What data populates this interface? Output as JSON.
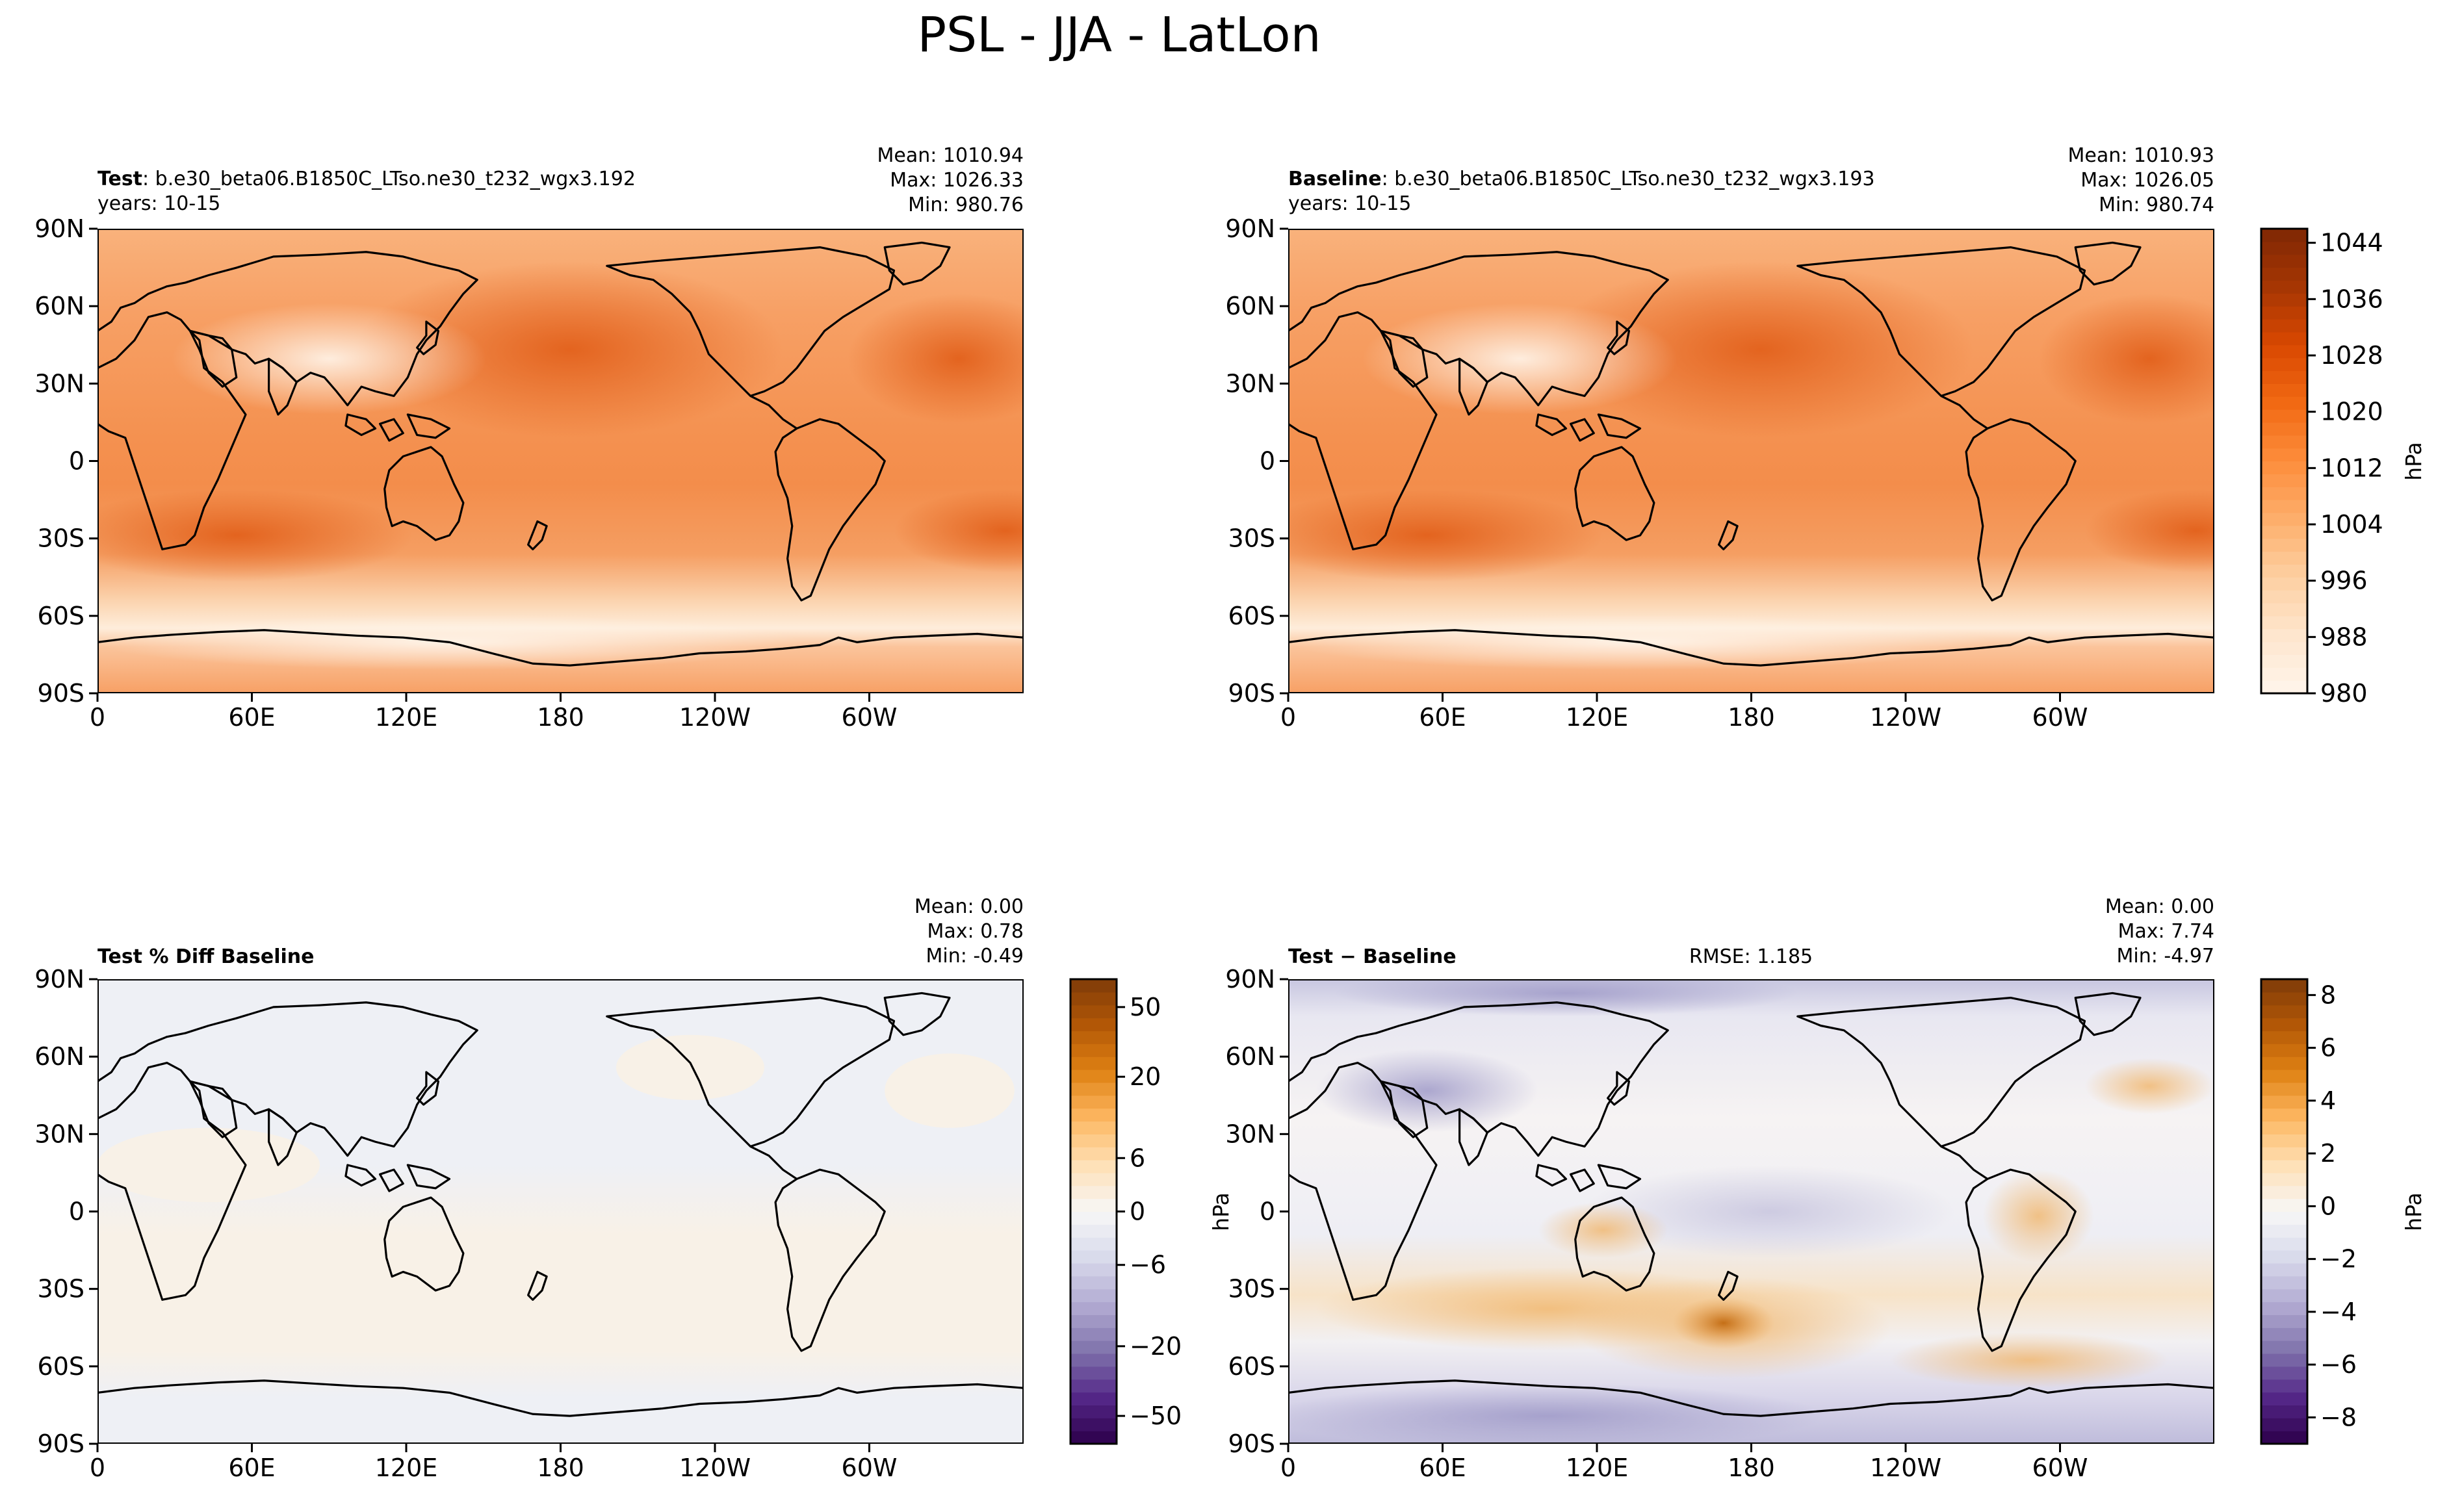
{
  "figure": {
    "title": "PSL - JJA - LatLon"
  },
  "chart_data": [
    {
      "type": "heatmap",
      "name": "test",
      "label_bold": "Test",
      "label_rest": ": b.e30_beta06.B1850C_LTso.ne30_t232_wgx3.192",
      "years": "years: 10-15",
      "stats": [
        "Mean: 1010.94",
        "Max: 1026.33",
        "Min: 980.76"
      ],
      "field": "psl",
      "colormap": "oranges",
      "vmin": 980,
      "vmax": 1046,
      "x_ticks": [
        "0",
        "60E",
        "120E",
        "180",
        "120W",
        "60W"
      ],
      "y_ticks": [
        "90N",
        "60N",
        "30N",
        "0",
        "30S",
        "60S",
        "90S"
      ],
      "xlim": [
        0,
        360
      ],
      "ylim": [
        -90,
        90
      ]
    },
    {
      "type": "heatmap",
      "name": "baseline",
      "label_bold": "Baseline",
      "label_rest": ": b.e30_beta06.B1850C_LTso.ne30_t232_wgx3.193",
      "years": "years: 10-15",
      "stats": [
        "Mean: 1010.93",
        "Max: 1026.05",
        "Min: 980.74"
      ],
      "field": "psl",
      "colormap": "oranges",
      "vmin": 980,
      "vmax": 1046,
      "x_ticks": [
        "0",
        "60E",
        "120E",
        "180",
        "120W",
        "60W"
      ],
      "y_ticks": [
        "90N",
        "60N",
        "30N",
        "0",
        "30S",
        "60S",
        "90S"
      ],
      "xlim": [
        0,
        360
      ],
      "ylim": [
        -90,
        90
      ],
      "colorbar": {
        "label": "hPa",
        "ticks": [
          "1044",
          "1036",
          "1028",
          "1020",
          "1012",
          "1004",
          "996",
          "988",
          "980"
        ],
        "tick_values": [
          1044,
          1036,
          1028,
          1020,
          1012,
          1004,
          996,
          988,
          980
        ],
        "min": 980,
        "max": 1046
      }
    },
    {
      "type": "heatmap",
      "name": "pct-diff",
      "label_bold": "Test % Diff Baseline",
      "stats": [
        "Mean:  0.00",
        "Max:  0.78",
        "Min: -0.49"
      ],
      "field": "pct",
      "colormap": "purple-orange",
      "x_ticks": [
        "0",
        "60E",
        "120E",
        "180",
        "120W",
        "60W"
      ],
      "y_ticks": [
        "90N",
        "60N",
        "30N",
        "0",
        "30S",
        "60S",
        "90S"
      ],
      "xlim": [
        0,
        360
      ],
      "ylim": [
        -90,
        90
      ],
      "colorbar": {
        "label": "hPa",
        "ticks": [
          "50",
          "20",
          "6",
          "0",
          "−6",
          "−20",
          "−50"
        ],
        "tick_fractions": [
          0.94,
          0.79,
          0.615,
          0.5,
          0.385,
          0.21,
          0.06
        ]
      }
    },
    {
      "type": "heatmap",
      "name": "difference",
      "label_bold": "Test − Baseline",
      "rmse": "RMSE: 1.185",
      "stats": [
        "Mean:  0.00",
        "Max:  7.74",
        "Min: -4.97"
      ],
      "field": "diff",
      "colormap": "purple-orange",
      "vmin": -9,
      "vmax": 8.6,
      "x_ticks": [
        "0",
        "60E",
        "120E",
        "180",
        "120W",
        "60W"
      ],
      "y_ticks": [
        "90N",
        "60N",
        "30N",
        "0",
        "30S",
        "60S",
        "90S"
      ],
      "xlim": [
        0,
        360
      ],
      "ylim": [
        -90,
        90
      ],
      "colorbar": {
        "label": "hPa",
        "ticks": [
          "8",
          "6",
          "4",
          "2",
          "0",
          "−2",
          "−4",
          "−6",
          "−8"
        ],
        "tick_values": [
          8,
          6,
          4,
          2,
          0,
          -2,
          -4,
          -6,
          -8
        ],
        "min": -9,
        "max": 8.6
      }
    }
  ]
}
